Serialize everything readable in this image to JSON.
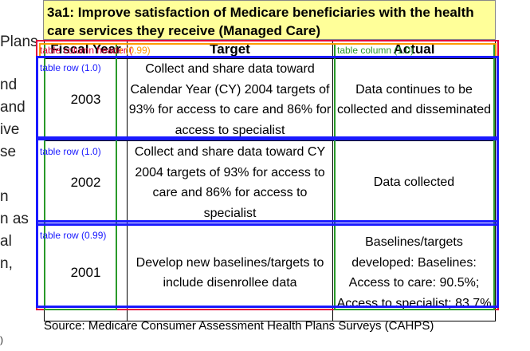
{
  "left_fragments": [
    "Plans",
    "nd",
    "and",
    "ive",
    "se",
    "n",
    "n as",
    "al",
    "n,",
    ")"
  ],
  "title": "3a1: Improve satisfaction of Medicare beneficiaries with the health care services they receive (Managed Care)",
  "table": {
    "headers": [
      "Fiscal Year",
      "Target",
      "Actual"
    ],
    "rows": [
      {
        "year": "2003",
        "target": "Collect and share data toward Calendar Year (CY) 2004 targets of 93% for access to care and 86% for access to specialist",
        "actual": "Data continues to be collected and disseminated"
      },
      {
        "year": "2002",
        "target": "Collect and share data toward CY 2004 targets of 93% for access to care and 86% for access to specialist",
        "actual": "Data collected"
      },
      {
        "year": "2001",
        "target": "Develop new baselines/targets to include disenrollee data",
        "actual": "Baselines/targets developed: Baselines: Access to care: 90.5%; Access to specialist; 83.7%"
      }
    ]
  },
  "source": "Source: Medicare Consumer Assessment Health Plans Surveys (CAHPS)",
  "overlay_labels": {
    "header": "table column header (",
    "header_score": "r (0.99)",
    "column": "table column (1.0)",
    "row1": "table row (1.0)",
    "row2": "table row (1.0)",
    "row3": "table row (0.99)"
  }
}
